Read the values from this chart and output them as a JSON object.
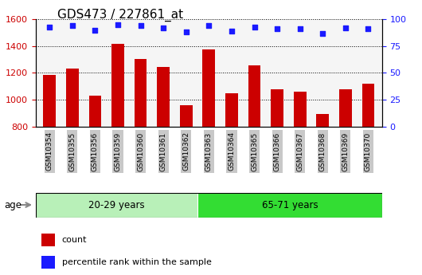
{
  "title": "GDS473 / 227861_at",
  "samples": [
    "GSM10354",
    "GSM10355",
    "GSM10356",
    "GSM10359",
    "GSM10360",
    "GSM10361",
    "GSM10362",
    "GSM10363",
    "GSM10364",
    "GSM10365",
    "GSM10366",
    "GSM10367",
    "GSM10368",
    "GSM10369",
    "GSM10370"
  ],
  "bar_values": [
    1185,
    1230,
    1030,
    1415,
    1305,
    1245,
    960,
    1375,
    1045,
    1255,
    1075,
    1060,
    895,
    1075,
    1120
  ],
  "percentile_values": [
    93,
    94,
    90,
    95,
    94,
    92,
    88,
    94,
    89,
    93,
    91,
    91,
    87,
    92,
    91
  ],
  "ylim_left": [
    800,
    1600
  ],
  "ylim_right": [
    0,
    100
  ],
  "yticks_left": [
    800,
    1000,
    1200,
    1400,
    1600
  ],
  "yticks_right": [
    0,
    25,
    50,
    75,
    100
  ],
  "group1_label": "20-29 years",
  "group2_label": "65-71 years",
  "group1_count": 7,
  "group2_count": 8,
  "bar_color": "#cc0000",
  "dot_color": "#1a1aff",
  "group1_bg": "#b8f0b8",
  "group2_bg": "#33dd33",
  "age_label": "age",
  "legend1": "count",
  "legend2": "percentile rank within the sample",
  "left_tick_color": "#cc0000",
  "right_tick_color": "#1a1aff",
  "title_fontsize": 11,
  "tick_label_bg": "#c8c8c8",
  "bg_color": "#f5f5f5"
}
